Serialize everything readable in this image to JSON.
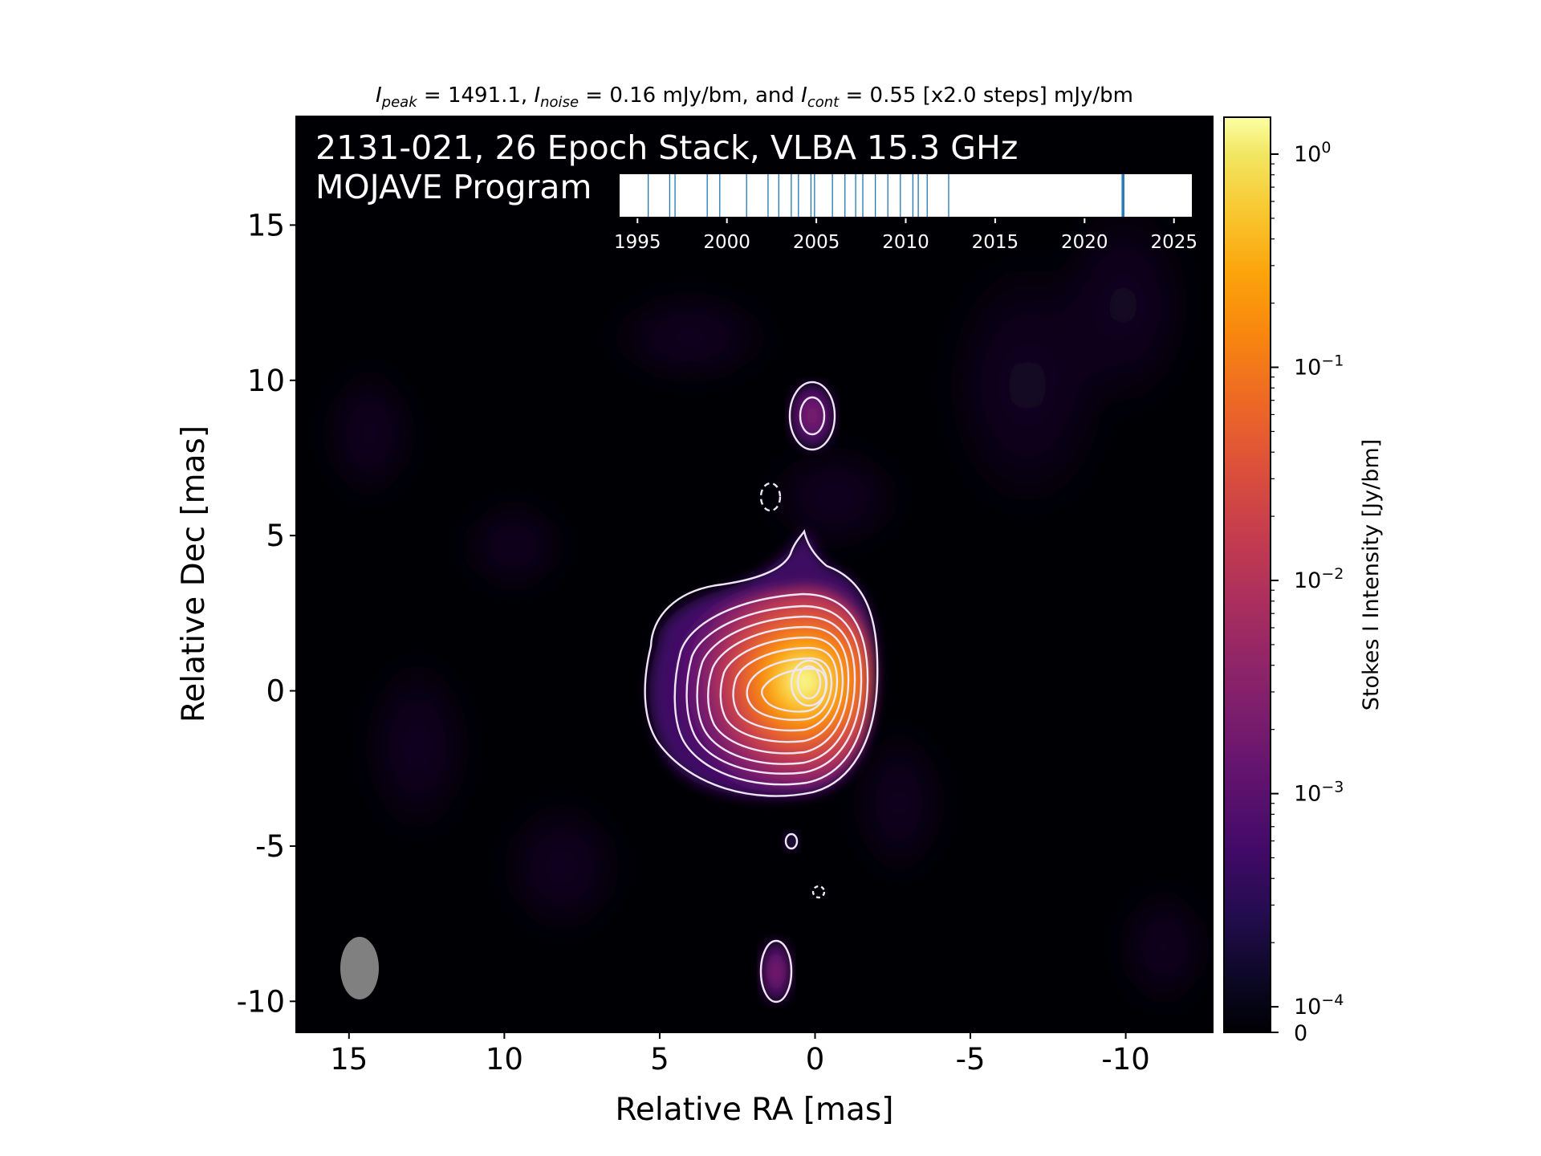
{
  "chart_data": {
    "type": "heatmap",
    "title_parts": {
      "peak_label": "I",
      "peak_sub": "peak",
      "peak_value": " = 1491.1, ",
      "noise_label": "I",
      "noise_sub": "noise",
      "noise_value": " = 0.16 mJy/bm, and ",
      "cont_label": "I",
      "cont_sub": "cont",
      "cont_value": " = 0.55 [x2.0 steps] mJy/bm"
    },
    "overlay_title_line1": "2131-021, 26 Epoch Stack, VLBA 15.3 GHz",
    "overlay_title_line2": "MOJAVE Program",
    "xlabel": "Relative RA [mas]",
    "ylabel": "Relative Dec [mas]",
    "xlim": [
      16.7,
      -12.8
    ],
    "ylim": [
      -11.0,
      18.5
    ],
    "xticks": [
      15,
      10,
      5,
      0,
      -5,
      -10
    ],
    "yticks": [
      15,
      10,
      5,
      0,
      -5,
      -10
    ],
    "colorbar": {
      "label": "Stokes I Intensity [Jy/bm]",
      "scale": "log",
      "range": [
        0,
        1.49
      ],
      "ticks": [
        {
          "mantissa": "10",
          "exp": "0",
          "log": 0
        },
        {
          "mantissa": "10",
          "exp": "−1",
          "log": -1
        },
        {
          "mantissa": "10",
          "exp": "−2",
          "log": -2
        },
        {
          "mantissa": "10",
          "exp": "−3",
          "log": -3
        },
        {
          "mantissa": "10",
          "exp": "−4",
          "log": -4
        }
      ],
      "zero_label": "0",
      "colormap": "inferno"
    },
    "core": {
      "ra": 0,
      "dec": 0,
      "peak_jy_per_beam": 1.4911
    },
    "noise_mjy_per_beam": 0.16,
    "lowest_contour_mjy_per_beam": 0.55,
    "contour_step_factor": 2.0,
    "contour_levels_mjy": [
      -0.55,
      0.55,
      1.1,
      2.2,
      4.4,
      8.8,
      17.6,
      35.2,
      70.4,
      140.8,
      281.6,
      563.2,
      1126.4
    ],
    "components": [
      {
        "ra": -0.2,
        "dec": 8.7,
        "note": "northern knot"
      },
      {
        "ra": 0.6,
        "dec": -5.0,
        "note": "small southern knot"
      },
      {
        "ra": 1.2,
        "dec": -9.3,
        "note": "southern knot"
      },
      {
        "ra": 1.3,
        "dec": 6.0,
        "note": "negative contour"
      },
      {
        "ra": -0.2,
        "dec": -6.7,
        "note": "negative contour"
      }
    ],
    "beam": {
      "ra": 14.6,
      "dec": -9.2,
      "bmaj_mas": 2.0,
      "bmin_mas": 1.2,
      "pa_deg": 0
    },
    "epoch_timeline": {
      "xlim": [
        1994.0,
        2026.0
      ],
      "ticks": [
        1995,
        2000,
        2005,
        2010,
        2015,
        2020,
        2025
      ],
      "epochs": [
        1995.6,
        1996.8,
        1997.1,
        1998.9,
        1999.6,
        2001.1,
        2002.3,
        2002.9,
        2003.6,
        2004.0,
        2004.7,
        2004.9,
        2005.9,
        2006.6,
        2007.2,
        2007.6,
        2008.3,
        2009.0,
        2009.7,
        2010.4,
        2010.7,
        2011.2,
        2012.4,
        2022.1,
        2022.15,
        2022.2
      ]
    }
  }
}
